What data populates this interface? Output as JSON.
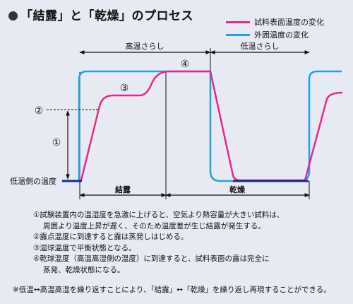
{
  "title": "「結露」と「乾燥」のプロセス",
  "legend": [
    {
      "label": "試料表面温度の変化",
      "color": "#e8268c"
    },
    {
      "label": "外囲温度の変化",
      "color": "#1ea1e6"
    }
  ],
  "labels": {
    "high_temp_exposure": "高温さらし",
    "low_temp_exposure": "低温さらし",
    "low_temp_side_temperature": "低温側の温度",
    "condensation": "結露",
    "drying": "乾燥",
    "marker_1": "①",
    "marker_2": "②",
    "marker_3": "③",
    "marker_4": "④"
  },
  "notes": {
    "note1_a": "①試験装置内の温湿度を急激に上げると、空気より熱容量が大きい試料は、",
    "note1_b": "周囲より温度上昇が遅く、そのため温度差が生じ結露が発生する。",
    "note2": "②露点温度に到達すると露は蒸発しはじめる。",
    "note3": "③湿球温度で平衡状態となる。",
    "note4_a": "④乾球温度（高温高湿側の温度）に到達すると、試料表面の露は完全に",
    "note4_b": "蒸発、乾燥状態になる。"
  },
  "footnote": "※低温↔高温高湿を繰り返すことにより、「結露」↔「乾燥」を繰り返し再現することができる。"
}
